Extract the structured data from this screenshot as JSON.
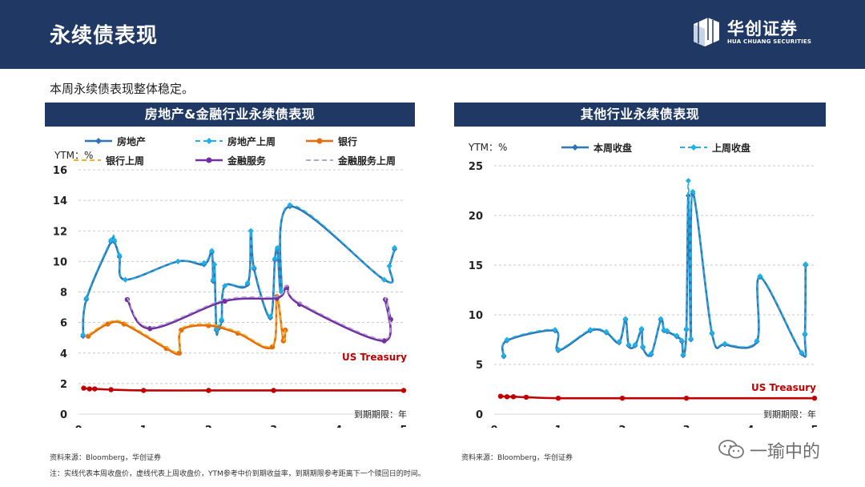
{
  "header": {
    "title": "永续债表现",
    "logo_name": "华创证券",
    "logo_sub": "HUA CHUANG SECURITIES"
  },
  "summary": "本周永续债表现整体稳定。",
  "colors": {
    "header_bg": "#1f3864",
    "real_estate": "#2e75b6",
    "real_estate_last": "#1fb0e8",
    "bank": "#e46c0a",
    "bank_last": "#f5b021",
    "financial": "#7030a0",
    "financial_last": "#b4a7d6",
    "treasury": "#c00000"
  },
  "chart_data": [
    {
      "type": "line",
      "title": "房地产&金融行业永续债表现",
      "ylabel": "YTM：%",
      "xlabel": "到期期限：年",
      "xlim": [
        0,
        5
      ],
      "ylim": [
        0,
        16
      ],
      "xticks": [
        0,
        1,
        2,
        3,
        4,
        5
      ],
      "yticks": [
        0,
        2,
        4,
        6,
        8,
        10,
        12,
        14,
        16
      ],
      "grid": "horizontal-dashed",
      "legend": "top",
      "annotation": "US Treasury",
      "series": [
        {
          "name": "房地产",
          "style": "solid",
          "color": "#2e75b6",
          "marker": "diamond",
          "x": [
            0.07,
            0.12,
            0.5,
            0.55,
            0.63,
            0.72,
            1.53,
            1.93,
            2.05,
            2.07,
            2.09,
            2.12,
            2.15,
            2.2,
            2.25,
            2.6,
            2.65,
            2.7,
            2.95,
            3.02,
            3.06,
            3.12,
            3.25,
            4.7,
            4.78,
            4.86
          ],
          "y": [
            5.1,
            7.5,
            11.3,
            11.3,
            10.3,
            8.8,
            10.0,
            9.8,
            10.6,
            8.7,
            9.8,
            5.5,
            5.6,
            6.1,
            8.4,
            8.5,
            12.0,
            9.5,
            6.3,
            10.1,
            10.8,
            8.0,
            13.6,
            8.8,
            9.7,
            10.8
          ]
        },
        {
          "name": "房地产上周",
          "style": "dashed",
          "color": "#1fb0e8",
          "marker": "diamond",
          "x": [
            0.07,
            0.12,
            0.5,
            0.55,
            0.63,
            0.72,
            1.53,
            1.93,
            2.05,
            2.07,
            2.09,
            2.12,
            2.15,
            2.2,
            2.25,
            2.6,
            2.65,
            2.7,
            2.95,
            3.02,
            3.06,
            3.12,
            3.25,
            4.7,
            4.78,
            4.86
          ],
          "y": [
            5.2,
            7.6,
            11.4,
            11.4,
            10.4,
            8.8,
            10.0,
            9.9,
            10.7,
            8.8,
            9.8,
            5.6,
            5.7,
            6.2,
            8.4,
            8.6,
            12.0,
            9.6,
            6.4,
            10.2,
            10.9,
            8.0,
            13.7,
            8.8,
            9.7,
            10.9
          ]
        },
        {
          "name": "银行",
          "style": "solid",
          "color": "#e46c0a",
          "marker": "circle",
          "x": [
            0.15,
            0.45,
            0.7,
            1.35,
            1.55,
            1.58,
            2.0,
            2.45,
            2.98,
            3.05,
            3.15,
            3.18
          ],
          "y": [
            5.1,
            5.9,
            5.9,
            4.3,
            4.0,
            5.5,
            5.8,
            5.3,
            4.4,
            7.7,
            4.8,
            5.5
          ]
        },
        {
          "name": "银行上周",
          "style": "dashed",
          "color": "#f5b021",
          "marker": "none",
          "x": [
            0.15,
            0.45,
            0.7,
            1.35,
            1.55,
            1.58,
            2.0,
            2.45,
            2.98,
            3.05,
            3.15,
            3.18
          ],
          "y": [
            5.2,
            6.0,
            6.0,
            4.4,
            4.1,
            5.6,
            5.9,
            5.4,
            4.5,
            7.8,
            4.9,
            5.6
          ]
        },
        {
          "name": "金融服务",
          "style": "solid",
          "color": "#7030a0",
          "marker": "circle",
          "x": [
            0.75,
            1.1,
            2.25,
            3.05,
            3.2,
            3.4,
            4.7,
            4.72,
            4.8
          ],
          "y": [
            7.5,
            5.6,
            7.4,
            7.6,
            8.3,
            7.2,
            4.8,
            7.5,
            6.2
          ]
        },
        {
          "name": "金融服务上周",
          "style": "dashed",
          "color": "#b4a7d6",
          "marker": "none",
          "x": [
            0.75,
            1.1,
            2.25,
            3.05,
            3.2,
            3.4,
            4.7,
            4.72,
            4.8
          ],
          "y": [
            7.6,
            5.7,
            7.5,
            7.7,
            8.4,
            7.3,
            4.9,
            7.6,
            6.3
          ]
        },
        {
          "name": "US Treasury",
          "style": "solid",
          "color": "#c00000",
          "marker": "circle",
          "legend": false,
          "x": [
            0.08,
            0.17,
            0.25,
            0.5,
            1.0,
            2.0,
            3.0,
            5.0
          ],
          "y": [
            1.7,
            1.65,
            1.65,
            1.6,
            1.55,
            1.55,
            1.55,
            1.55
          ]
        }
      ]
    },
    {
      "type": "line",
      "title": "其他行业永续债表现",
      "ylabel": "YTM：%",
      "xlabel": "到期期限：年",
      "xlim": [
        0,
        5
      ],
      "ylim": [
        0,
        25
      ],
      "xticks": [
        0,
        1,
        2,
        3,
        4,
        5
      ],
      "yticks": [
        0,
        5,
        10,
        15,
        20,
        25
      ],
      "grid": "horizontal-dashed",
      "legend": "top",
      "annotation": "US Treasury",
      "series": [
        {
          "name": "本周收盘",
          "style": "solid",
          "color": "#2e75b6",
          "marker": "diamond",
          "x": [
            0.15,
            0.2,
            0.95,
            1.0,
            1.5,
            1.75,
            1.95,
            2.05,
            2.1,
            2.2,
            2.3,
            2.32,
            2.45,
            2.6,
            2.65,
            2.7,
            2.85,
            2.93,
            2.95,
            3.0,
            3.03,
            3.07,
            3.1,
            3.4,
            3.6,
            4.1,
            4.15,
            4.8,
            4.85,
            4.86
          ],
          "y": [
            5.8,
            7.4,
            8.4,
            6.4,
            8.4,
            8.2,
            7.2,
            9.5,
            6.9,
            6.9,
            8.5,
            6.7,
            6.0,
            9.5,
            8.4,
            8.3,
            7.8,
            7.3,
            5.9,
            8.5,
            22.0,
            7.5,
            22.2,
            8.1,
            7.0,
            7.3,
            13.8,
            6.1,
            8.0,
            15.0
          ]
        },
        {
          "name": "上周收盘",
          "style": "dashed",
          "color": "#1fb0e8",
          "marker": "diamond",
          "x": [
            0.15,
            0.2,
            0.95,
            1.0,
            1.5,
            1.75,
            1.95,
            2.05,
            2.1,
            2.2,
            2.3,
            2.32,
            2.45,
            2.6,
            2.65,
            2.7,
            2.85,
            2.93,
            2.95,
            3.0,
            3.03,
            3.07,
            3.1,
            3.4,
            3.6,
            4.1,
            4.15,
            4.8,
            4.85,
            4.86
          ],
          "y": [
            5.9,
            7.5,
            8.5,
            6.5,
            8.5,
            8.3,
            7.3,
            9.6,
            7.0,
            7.0,
            8.6,
            6.8,
            6.1,
            9.6,
            8.5,
            8.4,
            7.9,
            7.4,
            6.0,
            8.6,
            23.5,
            7.6,
            22.4,
            8.2,
            7.1,
            7.4,
            13.9,
            6.2,
            8.1,
            15.1
          ]
        },
        {
          "name": "US Treasury",
          "style": "solid",
          "color": "#c00000",
          "marker": "circle",
          "legend": false,
          "x": [
            0.1,
            0.2,
            0.3,
            0.5,
            1.0,
            2.0,
            3.0,
            5.0
          ],
          "y": [
            1.8,
            1.75,
            1.75,
            1.7,
            1.6,
            1.6,
            1.6,
            1.6
          ]
        }
      ]
    }
  ],
  "source": "资料来源：Bloomberg，华创证券",
  "note": "注：实线代表本周收盘价，虚线代表上周收盘价，YTM参考中价到期收益率，到期期限参考距离下一个赎回日的时间。",
  "watermark": "一瑜中的"
}
